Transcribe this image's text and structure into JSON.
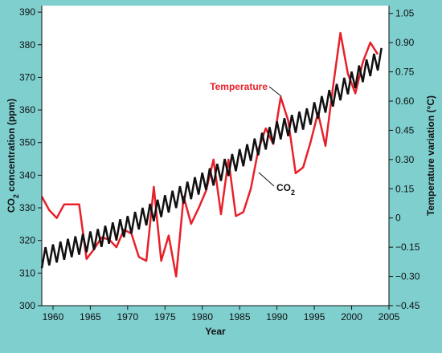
{
  "chart_data": {
    "type": "line",
    "xlabel": "Year",
    "ylabel_left": "CO2 concentration (ppm)",
    "ylabel_right": "Temperature variation (°C)",
    "x_ticks": [
      1960,
      1965,
      1970,
      1975,
      1980,
      1985,
      1990,
      1995,
      2000,
      2005
    ],
    "y_left_ticks": [
      300,
      310,
      320,
      330,
      340,
      350,
      360,
      370,
      380,
      390
    ],
    "y_right_ticks": [
      "−0.45",
      "−0.30",
      "−0.15",
      "0",
      "0.15",
      "0.30",
      "0.45",
      "0.60",
      "0.75",
      "0.90",
      "1.05"
    ],
    "xlim": [
      1958.5,
      2005
    ],
    "ylim_left": [
      300,
      392
    ],
    "ylim_right": [
      -0.45,
      1.09
    ],
    "grid": false,
    "colors": {
      "background": "#7fcfcf",
      "plot_area": "#ffffff",
      "temperature": "#e8202a",
      "co2": "#111111"
    },
    "annotations": [
      {
        "text": "Temperature",
        "color": "#e8202a"
      },
      {
        "text": "CO",
        "subscript": "2",
        "color": "#111111"
      }
    ],
    "series": [
      {
        "name": "Temperature",
        "axis": "right",
        "x": [
          1958.5,
          1959.5,
          1960.5,
          1961.5,
          1962.5,
          1963.5,
          1964.5,
          1965.5,
          1966.5,
          1967.5,
          1968.5,
          1969.5,
          1970.5,
          1971.5,
          1972.5,
          1973.5,
          1974.5,
          1975.5,
          1976.5,
          1977.5,
          1978.5,
          1979.5,
          1980.5,
          1981.5,
          1982.5,
          1983.5,
          1984.5,
          1985.5,
          1986.5,
          1987.5,
          1988.5,
          1989.5,
          1990.5,
          1991.5,
          1992.5,
          1993.5,
          1994.5,
          1995.5,
          1996.5,
          1997.5,
          1998.5,
          1999.5,
          2000.5,
          2001.5,
          2002.5,
          2003.5
        ],
        "values": [
          0.11,
          0.04,
          0.0,
          0.07,
          0.07,
          0.07,
          -0.21,
          -0.16,
          -0.1,
          -0.11,
          -0.15,
          -0.06,
          -0.08,
          -0.2,
          -0.22,
          0.16,
          -0.22,
          -0.09,
          -0.3,
          0.11,
          -0.03,
          0.05,
          0.14,
          0.3,
          0.02,
          0.3,
          0.01,
          0.03,
          0.15,
          0.35,
          0.46,
          0.38,
          0.62,
          0.5,
          0.23,
          0.26,
          0.39,
          0.54,
          0.37,
          0.67,
          0.95,
          0.74,
          0.64,
          0.8,
          0.9,
          0.84
        ]
      },
      {
        "name": "CO2",
        "axis": "left",
        "seasonal_amplitude_ppm": 3,
        "x": [
          1958.5,
          1962,
          1966,
          1970,
          1974,
          1978,
          1982,
          1986,
          1990,
          1994,
          1998,
          2002,
          2004
        ],
        "values": [
          314.5,
          317.5,
          320.5,
          324.5,
          329.5,
          335,
          340.5,
          346.5,
          353.5,
          357.5,
          365,
          372.5,
          376
        ]
      }
    ]
  }
}
